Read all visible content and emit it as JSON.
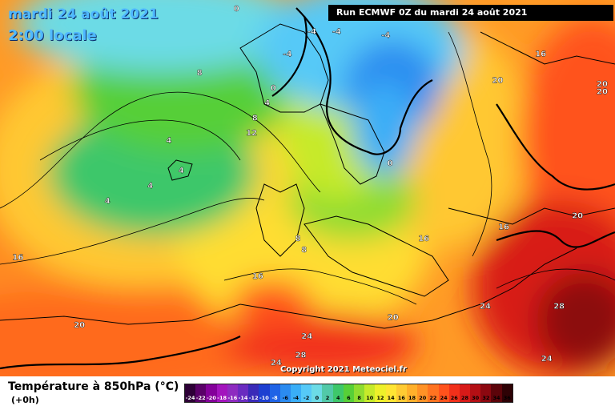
{
  "header": {
    "date": "mardi 24 août 2021",
    "time": "2:00 locale",
    "run": "Run ECMWF 0Z du mardi 24 août 2021"
  },
  "copyright": "Copyright 2021 Meteociel.fr",
  "footer": {
    "title": "Température à 850hPa (°C)",
    "lead": "(+0h)"
  },
  "legend": {
    "labels": [
      "-24",
      "-22",
      "-20",
      "-18",
      "-16",
      "-14",
      "-12",
      "-10",
      "-8",
      "-6",
      "-4",
      "-2",
      "0",
      "2",
      "4",
      "6",
      "8",
      "10",
      "12",
      "14",
      "16",
      "18",
      "20",
      "22",
      "24",
      "26",
      "28",
      "30",
      "32",
      "34",
      "36"
    ],
    "colors": [
      "#2e0037",
      "#5a0068",
      "#84009a",
      "#a314bd",
      "#8e2bc0",
      "#6a2bc0",
      "#3a2ab8",
      "#1e3fd1",
      "#1f63e6",
      "#2b8bf0",
      "#3aaef7",
      "#56c9f7",
      "#6cdbe6",
      "#52c9a8",
      "#3ec76a",
      "#57cf38",
      "#8fdc30",
      "#c6ea2a",
      "#eef02a",
      "#ffe533",
      "#ffcb33",
      "#ffb02b",
      "#ff9226",
      "#ff7320",
      "#ff521c",
      "#f2301a",
      "#d81a18",
      "#b40f14",
      "#8c0810",
      "#5c040a",
      "#2e0205"
    ],
    "dark_from": 0,
    "dark_to": 8
  },
  "isotherm_labels": [
    {
      "t": "0",
      "xf": 0.38,
      "yf": 0.03
    },
    {
      "t": "-4",
      "xf": 0.5,
      "yf": 0.09
    },
    {
      "t": "-4",
      "xf": 0.54,
      "yf": 0.09
    },
    {
      "t": "-4",
      "xf": 0.62,
      "yf": 0.1
    },
    {
      "t": "-4",
      "xf": 0.46,
      "yf": 0.15
    },
    {
      "t": "0",
      "xf": 0.44,
      "yf": 0.24
    },
    {
      "t": "4",
      "xf": 0.43,
      "yf": 0.28
    },
    {
      "t": "8",
      "xf": 0.32,
      "yf": 0.2
    },
    {
      "t": "8",
      "xf": 0.41,
      "yf": 0.32
    },
    {
      "t": "12",
      "xf": 0.4,
      "yf": 0.36
    },
    {
      "t": "4",
      "xf": 0.27,
      "yf": 0.38
    },
    {
      "t": "4",
      "xf": 0.29,
      "yf": 0.46
    },
    {
      "t": "4",
      "xf": 0.24,
      "yf": 0.5
    },
    {
      "t": "4",
      "xf": 0.17,
      "yf": 0.54
    },
    {
      "t": "0",
      "xf": 0.63,
      "yf": 0.44
    },
    {
      "t": "16",
      "xf": 0.87,
      "yf": 0.15
    },
    {
      "t": "20",
      "xf": 0.8,
      "yf": 0.22
    },
    {
      "t": "20",
      "xf": 0.97,
      "yf": 0.23
    },
    {
      "t": "20",
      "xf": 0.97,
      "yf": 0.25
    },
    {
      "t": "16",
      "xf": 0.81,
      "yf": 0.61
    },
    {
      "t": "20",
      "xf": 0.93,
      "yf": 0.58
    },
    {
      "t": "16",
      "xf": 0.68,
      "yf": 0.64
    },
    {
      "t": "8",
      "xf": 0.48,
      "yf": 0.64
    },
    {
      "t": "8",
      "xf": 0.49,
      "yf": 0.67
    },
    {
      "t": "16",
      "xf": 0.02,
      "yf": 0.69
    },
    {
      "t": "16",
      "xf": 0.41,
      "yf": 0.74
    },
    {
      "t": "24",
      "xf": 0.78,
      "yf": 0.82
    },
    {
      "t": "28",
      "xf": 0.9,
      "yf": 0.82
    },
    {
      "t": "20",
      "xf": 0.12,
      "yf": 0.87
    },
    {
      "t": "20",
      "xf": 0.63,
      "yf": 0.85
    },
    {
      "t": "24",
      "xf": 0.49,
      "yf": 0.9
    },
    {
      "t": "28",
      "xf": 0.48,
      "yf": 0.95
    },
    {
      "t": "24",
      "xf": 0.44,
      "yf": 0.97
    },
    {
      "t": "24",
      "xf": 0.88,
      "yf": 0.96
    }
  ]
}
